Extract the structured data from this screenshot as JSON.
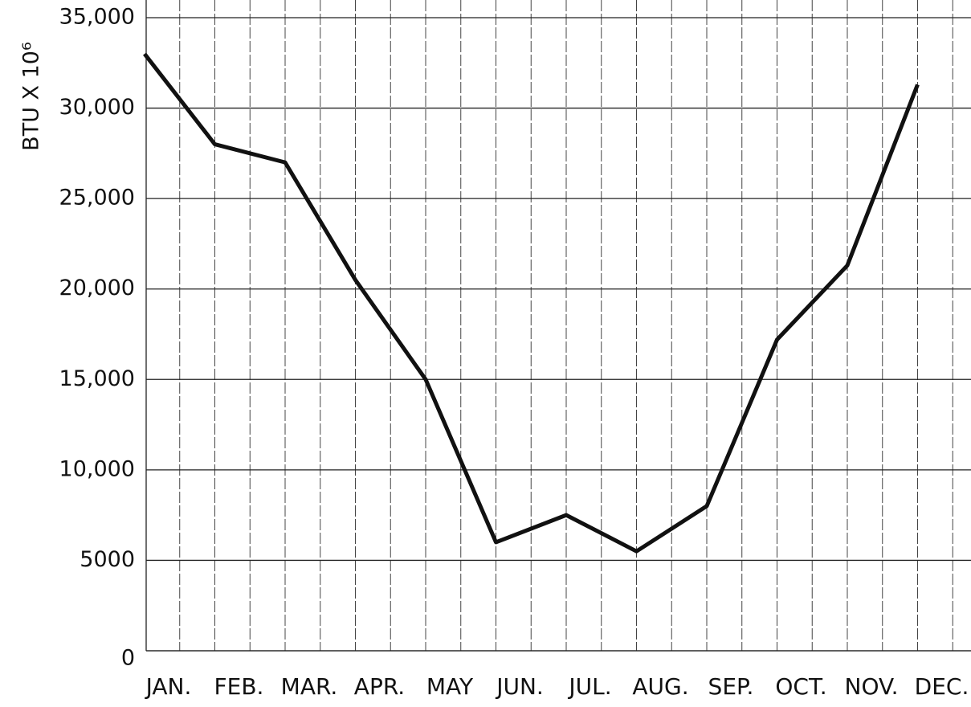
{
  "chart_data": {
    "type": "line",
    "y_label": "BTU X 10⁶",
    "categories": [
      "JAN.",
      "FEB.",
      "MAR.",
      "APR.",
      "MAY",
      "JUN.",
      "JUL.",
      "AUG.",
      "SEP.",
      "OCT.",
      "NOV.",
      "DEC."
    ],
    "series": [
      {
        "name": "BTU",
        "color": "#111111",
        "values": [
          33000,
          28000,
          27000,
          20500,
          15000,
          6000,
          7500,
          5500,
          8000,
          17200,
          21300,
          31300
        ]
      }
    ],
    "ylim": [
      0,
      35000
    ],
    "yticks": [
      0,
      5000,
      {
        "value": 10000,
        "label": "10,000"
      },
      {
        "value": 15000,
        "label": "15,000"
      },
      {
        "value": 20000,
        "label": "20,000"
      },
      {
        "value": 25000,
        "label": "25,000"
      },
      {
        "value": 30000,
        "label": "30,000"
      },
      {
        "value": 35000,
        "label": "35,000"
      }
    ],
    "grid": true
  }
}
